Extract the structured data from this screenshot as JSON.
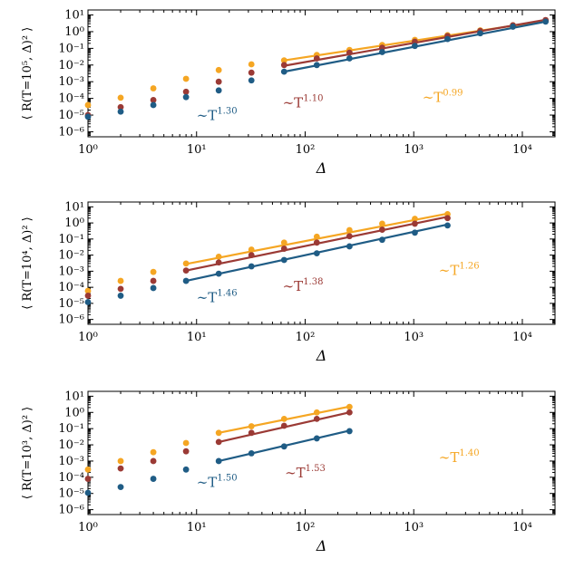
{
  "chart_data": [
    {
      "type": "scatter",
      "panel": "T=10^5",
      "ylabel": "⟨ R(T=10⁵, Δ)² ⟩",
      "xlabel": "Δ",
      "xscale": "log",
      "yscale": "log",
      "xlim": [
        1,
        20000
      ],
      "ylim": [
        5e-07,
        20
      ],
      "x_ticks": [
        "10⁰",
        "10¹",
        "10²",
        "10³",
        "10⁴"
      ],
      "y_ticks": [
        "10⁻⁶",
        "10⁻⁵",
        "10⁻⁴",
        "10⁻³",
        "10⁻²",
        "10⁻¹",
        "10⁰",
        "10¹"
      ],
      "series": [
        {
          "name": "series-orange",
          "color": "#f5a623",
          "x": [
            1,
            2,
            4,
            8,
            16,
            32,
            64,
            128,
            256,
            512,
            1024,
            2048,
            4096,
            8192,
            16384
          ],
          "y": [
            4e-05,
            0.00011,
            0.0004,
            0.0015,
            0.005,
            0.011,
            0.019,
            0.04,
            0.08,
            0.16,
            0.32,
            0.62,
            1.2,
            2.4,
            4.5
          ],
          "fit": {
            "x0": 64,
            "x1": 16384,
            "y0": 0.019,
            "y1": 4.5
          },
          "label": "~T^{0.99}",
          "label_pos": [
            1200,
            6e-05
          ]
        },
        {
          "name": "series-red",
          "color": "#9b3a35",
          "x": [
            1,
            2,
            4,
            8,
            16,
            32,
            64,
            128,
            256,
            512,
            1024,
            2048,
            4096,
            8192,
            16384
          ],
          "y": [
            1e-05,
            3e-05,
            8e-05,
            0.00025,
            0.001,
            0.0035,
            0.01,
            0.025,
            0.055,
            0.11,
            0.25,
            0.55,
            1.1,
            2.4,
            5.0
          ],
          "fit": {
            "x0": 64,
            "x1": 16384,
            "y0": 0.009,
            "y1": 5.2
          },
          "label": "~T^{1.10}",
          "label_pos": [
            62,
            3e-05
          ]
        },
        {
          "name": "series-blue",
          "color": "#1f5c85",
          "x": [
            1,
            2,
            4,
            8,
            16,
            32,
            64,
            128,
            256,
            512,
            1024,
            2048,
            4096,
            8192,
            16384
          ],
          "y": [
            8e-06,
            1.6e-05,
            4e-05,
            0.00012,
            0.0003,
            0.0012,
            0.004,
            0.01,
            0.025,
            0.06,
            0.14,
            0.36,
            0.8,
            2.0,
            4.0
          ],
          "fit": {
            "x0": 64,
            "x1": 16384,
            "y0": 0.004,
            "y1": 4.0
          },
          "label": "~T^{1.30}",
          "label_pos": [
            10,
            5e-06
          ]
        }
      ]
    },
    {
      "type": "scatter",
      "panel": "T=10^4",
      "ylabel": "⟨ R(T=10⁴, Δ)² ⟩",
      "xlabel": "Δ",
      "xscale": "log",
      "yscale": "log",
      "xlim": [
        1,
        20000
      ],
      "ylim": [
        5e-07,
        20
      ],
      "x_ticks": [
        "10⁰",
        "10¹",
        "10²",
        "10³",
        "10⁴"
      ],
      "y_ticks": [
        "10⁻⁶",
        "10⁻⁵",
        "10⁻⁴",
        "10⁻³",
        "10⁻²",
        "10⁻¹",
        "10⁰",
        "10¹"
      ],
      "series": [
        {
          "name": "series-orange",
          "color": "#f5a623",
          "x": [
            1,
            2,
            4,
            8,
            16,
            32,
            64,
            128,
            256,
            512,
            1024,
            2048
          ],
          "y": [
            6e-05,
            0.00025,
            0.0009,
            0.003,
            0.008,
            0.022,
            0.06,
            0.14,
            0.36,
            0.9,
            1.8,
            3.5
          ],
          "fit": {
            "x0": 8,
            "x1": 2048,
            "y0": 0.0028,
            "y1": 3.8
          },
          "label": "~T^{1.26}",
          "label_pos": [
            1700,
            0.0006
          ]
        },
        {
          "name": "series-red",
          "color": "#9b3a35",
          "x": [
            1,
            2,
            4,
            8,
            16,
            32,
            64,
            128,
            256,
            512,
            1024,
            2048
          ],
          "y": [
            3e-05,
            8e-05,
            0.00025,
            0.0011,
            0.0035,
            0.01,
            0.025,
            0.06,
            0.15,
            0.38,
            0.9,
            2.0
          ],
          "fit": {
            "x0": 8,
            "x1": 2048,
            "y0": 0.0011,
            "y1": 2.4
          },
          "label": "~T^{1.38}",
          "label_pos": [
            62,
            6e-05
          ]
        },
        {
          "name": "series-blue",
          "color": "#1f5c85",
          "x": [
            1,
            2,
            4,
            8,
            16,
            32,
            64,
            128,
            256,
            512,
            1024,
            2048
          ],
          "y": [
            1.2e-05,
            3e-05,
            9e-05,
            0.00025,
            0.0007,
            0.002,
            0.005,
            0.013,
            0.035,
            0.09,
            0.25,
            0.7
          ],
          "fit": {
            "x0": 8,
            "x1": 2048,
            "y0": 0.00025,
            "y1": 0.8
          },
          "label": "~T^{1.46}",
          "label_pos": [
            10,
            1.2e-05
          ]
        }
      ]
    },
    {
      "type": "scatter",
      "panel": "T=10^3",
      "ylabel": "⟨ R(T=10³, Δ)² ⟩",
      "xlabel": "Δ",
      "xscale": "log",
      "yscale": "log",
      "xlim": [
        1,
        20000
      ],
      "ylim": [
        5e-07,
        20
      ],
      "x_ticks": [
        "10⁰",
        "10¹",
        "10²",
        "10³",
        "10⁴"
      ],
      "y_ticks": [
        "10⁻⁶",
        "10⁻⁵",
        "10⁻⁴",
        "10⁻³",
        "10⁻²",
        "10⁻¹",
        "10⁰",
        "10¹"
      ],
      "series": [
        {
          "name": "series-orange",
          "color": "#f5a623",
          "x": [
            1,
            2,
            4,
            8,
            16,
            32,
            64,
            128,
            256
          ],
          "y": [
            0.0003,
            0.001,
            0.0035,
            0.013,
            0.055,
            0.14,
            0.4,
            1.0,
            2.2
          ],
          "fit": {
            "x0": 16,
            "x1": 256,
            "y0": 0.055,
            "y1": 2.3
          },
          "label": "~T^{1.40}",
          "label_pos": [
            1700,
            0.0009
          ]
        },
        {
          "name": "series-red",
          "color": "#9b3a35",
          "x": [
            1,
            2,
            4,
            8,
            16,
            32,
            64,
            128,
            256
          ],
          "y": [
            8e-05,
            0.00035,
            0.001,
            0.004,
            0.015,
            0.055,
            0.15,
            0.4,
            1.0
          ],
          "fit": {
            "x0": 16,
            "x1": 256,
            "y0": 0.015,
            "y1": 1.0
          },
          "label": "~T^{1.53}",
          "label_pos": [
            65,
            0.0001
          ]
        },
        {
          "name": "series-blue",
          "color": "#1f5c85",
          "x": [
            1,
            2,
            4,
            8,
            16,
            32,
            64,
            128,
            256
          ],
          "y": [
            1.1e-05,
            2.5e-05,
            8e-05,
            0.0003,
            0.001,
            0.003,
            0.008,
            0.025,
            0.07
          ],
          "fit": {
            "x0": 16,
            "x1": 256,
            "y0": 0.001,
            "y1": 0.075
          },
          "label": "~T^{1.50}",
          "label_pos": [
            10,
            2.5e-05
          ]
        }
      ]
    }
  ]
}
